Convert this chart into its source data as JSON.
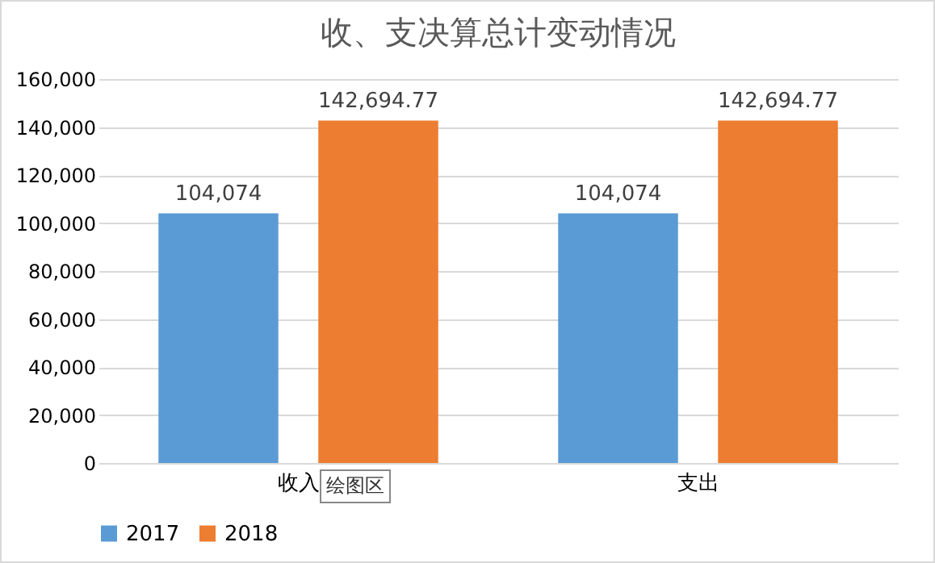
{
  "chart_data": {
    "type": "bar",
    "title": "收、支决算总计变动情况",
    "categories": [
      "收入",
      "支出"
    ],
    "series": [
      {
        "name": "2017",
        "color": "#5b9bd5",
        "values": [
          104074,
          104074
        ],
        "value_labels": [
          "104,074",
          "104,074"
        ]
      },
      {
        "name": "2018",
        "color": "#ed7d31",
        "values": [
          142694.77,
          142694.77
        ],
        "value_labels": [
          "142,694.77",
          "142,694.77"
        ]
      }
    ],
    "ylim": [
      0,
      160000
    ],
    "yticks": [
      0,
      {
        "value": 20000,
        "label": "20,000"
      },
      {
        "value": 40000,
        "label": "40,000"
      },
      {
        "value": 60000,
        "label": "60,000"
      },
      {
        "value": 80000,
        "label": "80,000"
      },
      {
        "value": 100000,
        "label": "100,000"
      },
      {
        "value": 120000,
        "label": "120,000"
      },
      {
        "value": 140000,
        "label": "140,000"
      },
      {
        "value": 160000,
        "label": "160,000"
      }
    ],
    "grid": "y",
    "legend": "bottom",
    "annotations": [
      "绘图区"
    ]
  }
}
